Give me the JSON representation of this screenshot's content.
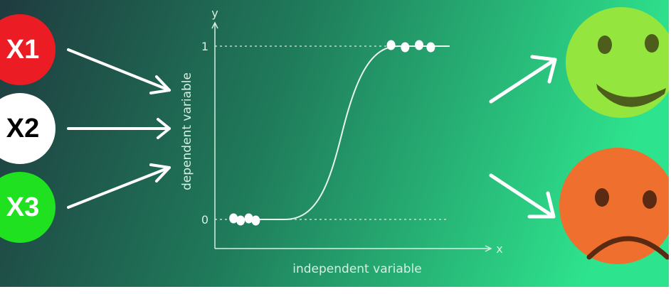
{
  "inputs": [
    {
      "label": "X1",
      "fill": "#ec1c24",
      "text_color": "#ffffff"
    },
    {
      "label": "X2",
      "fill": "#ffffff",
      "text_color": "#000000"
    },
    {
      "label": "X3",
      "fill": "#1fe11f",
      "text_color": "#ffffff"
    }
  ],
  "chart_data": {
    "type": "scatter",
    "xlabel": "independent variable",
    "ylabel": "dependent variable",
    "x_axis_name": "x",
    "y_axis_name": "y",
    "y_ticks": [
      "0",
      "1"
    ],
    "curve": "sigmoid",
    "points": [
      {
        "x": 0.08,
        "y": 0
      },
      {
        "x": 0.11,
        "y": 0
      },
      {
        "x": 0.145,
        "y": 0
      },
      {
        "x": 0.175,
        "y": 0
      },
      {
        "x": 0.755,
        "y": 1
      },
      {
        "x": 0.815,
        "y": 1
      },
      {
        "x": 0.875,
        "y": 1
      },
      {
        "x": 0.925,
        "y": 1
      }
    ]
  },
  "outcomes": [
    {
      "name": "happy-face",
      "fill": "#95e53f",
      "feature_color": "#4d5e1c"
    },
    {
      "name": "sad-face",
      "fill": "#ef6f2e",
      "feature_color": "#5a2a12"
    }
  ],
  "colors": {
    "background_left": "#1f3b3f",
    "background_right": "#2ee38d",
    "arrow": "#ffffff",
    "axis": "#d5efe2",
    "curve": "#e8f5ee"
  }
}
